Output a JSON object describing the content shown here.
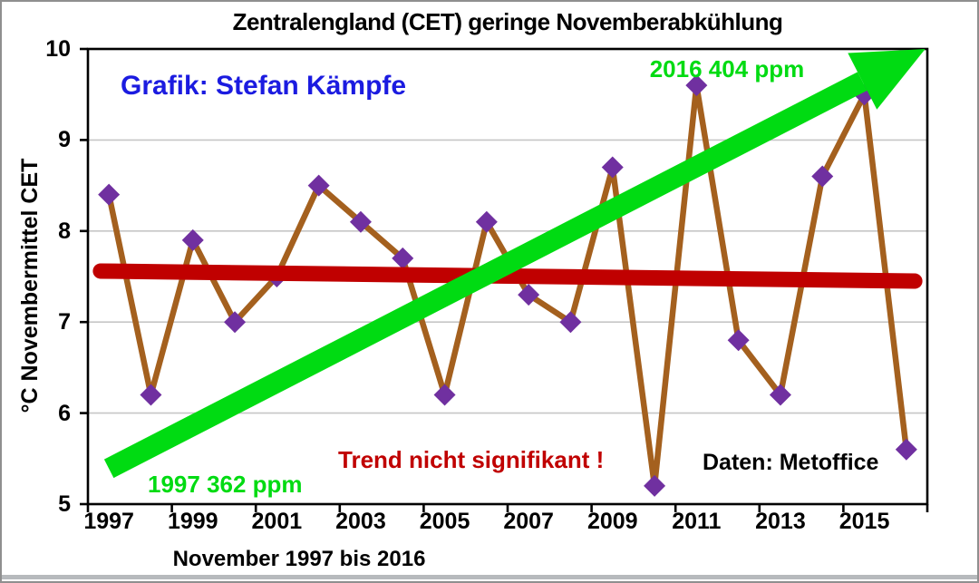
{
  "title": "Zentralengland (CET) geringe Novemberabkühlung",
  "axis": {
    "y_label": "°C Novembermittel CET",
    "x_label": "November 1997 bis 2016",
    "y_tick_labels": [
      "10",
      "9",
      "8",
      "7",
      "6",
      "5"
    ],
    "x_tick_labels": [
      "1997",
      "1999",
      "2001",
      "2003",
      "2005",
      "2007",
      "2009",
      "2011",
      "2013",
      "2015"
    ]
  },
  "annotations": {
    "credit": "Grafik: Stefan Kämpfe",
    "co2_2016": "2016 404 ppm",
    "co2_1997": "1997 362 ppm",
    "trend_note": "Trend nicht signifikant !",
    "source": "Daten: Metoffice"
  },
  "colors": {
    "series_line": "#a4601e",
    "marker": "#7030a0",
    "trend_line": "#c00000",
    "co2_arrow": "#00db12",
    "credit_text": "#1b1be0",
    "co2_text": "#00db12",
    "trend_note_text": "#c00000",
    "source_text": "#000000",
    "gridline": "#c6c6c6",
    "frame": "#000000"
  },
  "chart_data": {
    "type": "line",
    "title": "Zentralengland (CET) geringe Novemberabkühlung",
    "xlabel": "November 1997 bis 2016",
    "ylabel": "°C Novembermittel CET",
    "ylim": [
      5,
      10
    ],
    "xlim_years": [
      1997,
      2016
    ],
    "grid": "horizontal gridlines at 6, 7, 8, 9",
    "legend_position": "none",
    "x": [
      1997,
      1998,
      1999,
      2000,
      2001,
      2002,
      2003,
      2004,
      2005,
      2006,
      2007,
      2008,
      2009,
      2010,
      2011,
      2012,
      2013,
      2014,
      2015,
      2016
    ],
    "series": [
      {
        "name": "Novembermittel CET (°C)",
        "marker": "diamond",
        "values": [
          8.4,
          6.2,
          7.9,
          7.0,
          7.5,
          8.5,
          8.1,
          7.7,
          6.2,
          8.1,
          7.3,
          7.0,
          8.7,
          5.2,
          9.6,
          6.8,
          6.2,
          8.6,
          9.5,
          5.6
        ]
      }
    ],
    "trend_line": {
      "label": "Trend nicht signifikant !",
      "start_year": 1996.8,
      "start_value": 7.56,
      "end_year": 2016.2,
      "end_value": 7.45
    },
    "co2_arrow": {
      "start_label": "1997 362 ppm",
      "end_label": "2016 404 ppm",
      "start_year": 1997.0,
      "start_value": 5.39,
      "end_year": 2016.45,
      "end_value": 10.0
    }
  }
}
